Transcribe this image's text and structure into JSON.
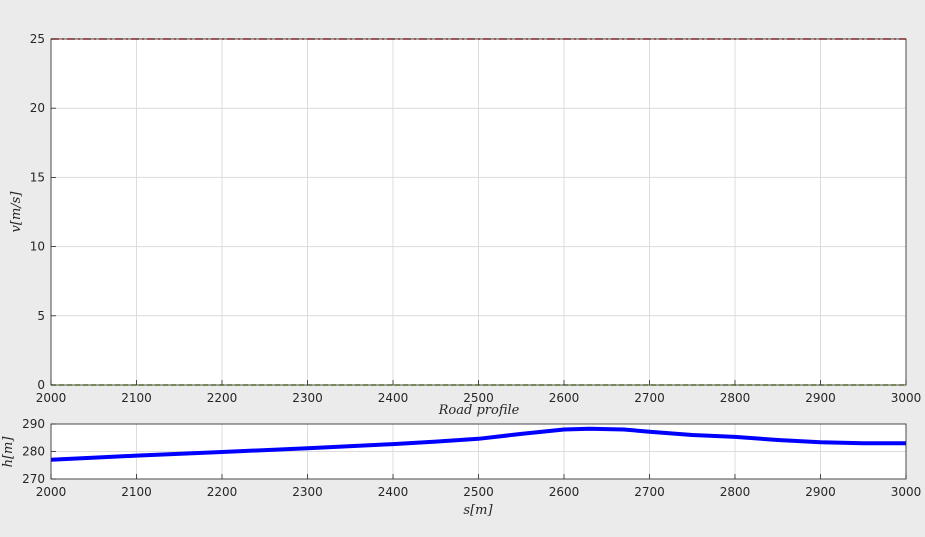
{
  "chart_data": [
    {
      "type": "line",
      "title": "",
      "xlabel": "",
      "ylabel": "v[m/s]",
      "xlim": [
        2000,
        3000
      ],
      "ylim": [
        0,
        25
      ],
      "xticks": [
        "2000",
        "2100",
        "2200",
        "2300",
        "2400",
        "2500",
        "2600",
        "2700",
        "2800",
        "2900",
        "3000"
      ],
      "yticks": [
        "0",
        "5",
        "10",
        "15",
        "20",
        "25"
      ],
      "grid": true,
      "series": [
        {
          "color": "#d62728",
          "style": "dash-dot",
          "x": [
            2000,
            3000
          ],
          "y": [
            25,
            25
          ]
        },
        {
          "color": "#7fae2d",
          "style": "dashed",
          "x": [
            2000,
            3000
          ],
          "y": [
            0,
            0
          ]
        }
      ]
    },
    {
      "type": "line",
      "title": "Road profile",
      "xlabel": "s[m]",
      "ylabel": "h[m]",
      "xlim": [
        2000,
        3000
      ],
      "ylim": [
        270,
        290
      ],
      "xticks": [
        "2000",
        "2100",
        "2200",
        "2300",
        "2400",
        "2500",
        "2600",
        "2700",
        "2800",
        "2900",
        "3000"
      ],
      "yticks": [
        "270",
        "280",
        "290"
      ],
      "grid": true,
      "series": [
        {
          "color": "#0000ff",
          "x": [
            2000,
            2100,
            2200,
            2300,
            2400,
            2450,
            2500,
            2550,
            2600,
            2630,
            2670,
            2700,
            2750,
            2800,
            2850,
            2900,
            2950,
            3000
          ],
          "y": [
            277,
            278.5,
            279.8,
            281.2,
            282.7,
            283.6,
            284.6,
            286.4,
            288,
            288.3,
            288,
            287.2,
            286,
            285.3,
            284.2,
            283.4,
            283,
            283
          ]
        }
      ]
    }
  ]
}
